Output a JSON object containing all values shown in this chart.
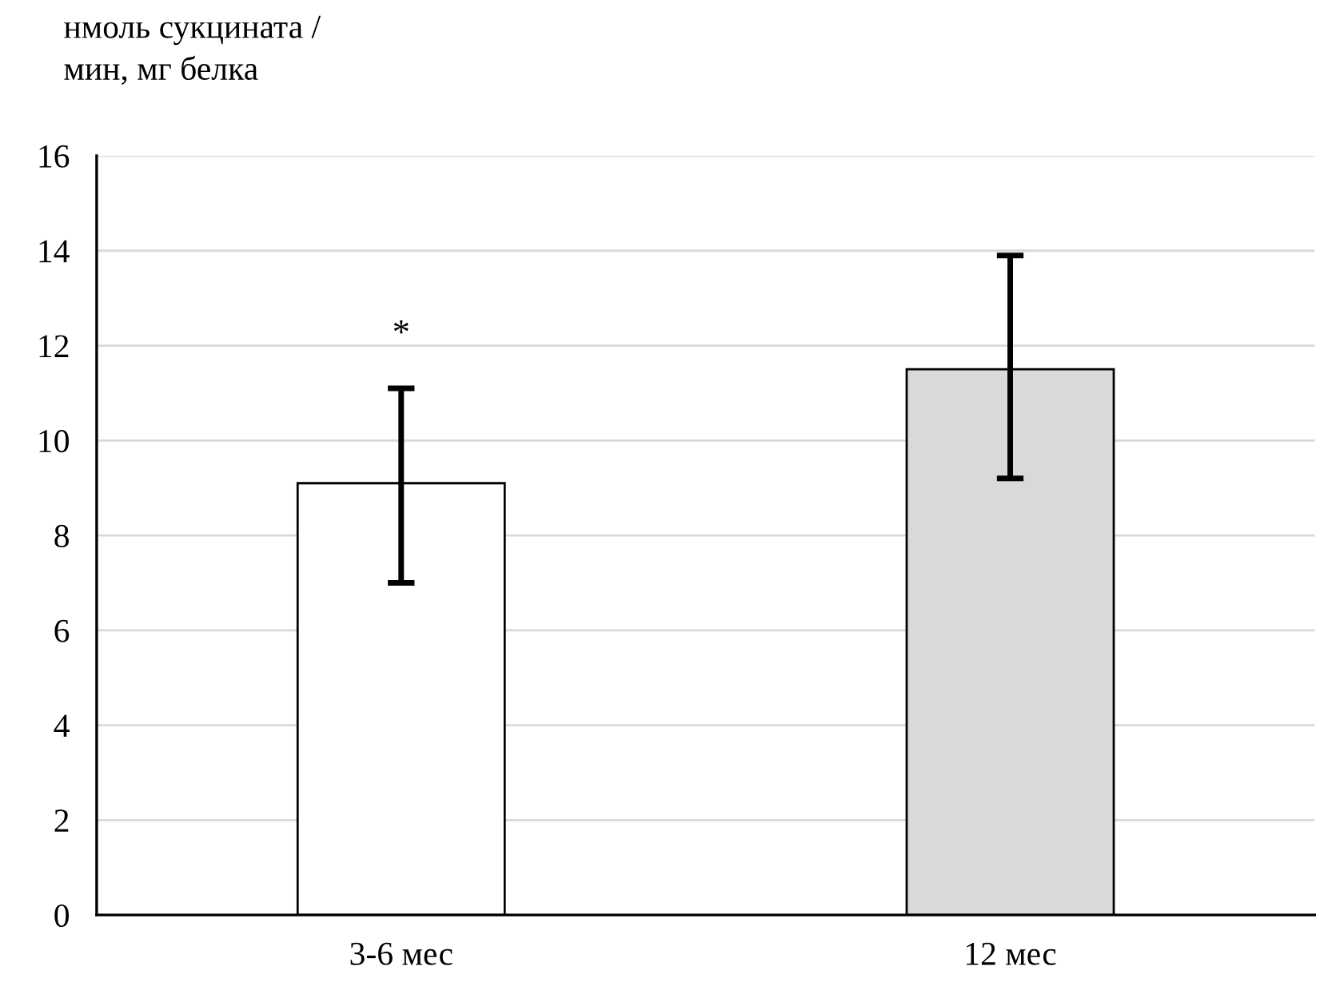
{
  "chart_data": {
    "type": "bar",
    "ylabel": "нмоль сукцината /\nмин, мг белка",
    "categories": [
      "3-6 мес",
      "12 мес"
    ],
    "values": [
      9.1,
      11.5
    ],
    "colors": [
      "#ffffff",
      "#d9d9d9"
    ],
    "errors": [
      [
        7.0,
        11.1
      ],
      [
        9.2,
        13.9
      ]
    ],
    "ylim": [
      0,
      16
    ],
    "yticks": [
      0,
      2,
      4,
      6,
      8,
      10,
      12,
      14,
      16
    ],
    "grid": "y",
    "annotations": [
      "*"
    ]
  }
}
